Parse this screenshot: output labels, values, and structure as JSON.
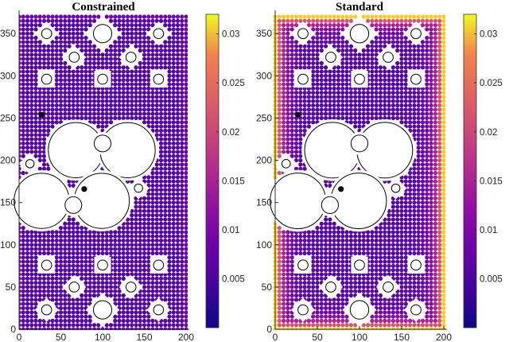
{
  "chart_data": [
    {
      "type": "scatter",
      "title": "Constrained",
      "xlim": [
        0,
        200
      ],
      "ylim": [
        0,
        370
      ],
      "xticks": [
        "0",
        "50",
        "100",
        "150",
        "200"
      ],
      "yticks": [
        "0",
        "50",
        "100",
        "150",
        "200",
        "250",
        "300",
        "350"
      ],
      "colorbar": {
        "min": 0.0,
        "max": 0.032,
        "ticks": [
          "0.005",
          "0.01",
          "0.015",
          "0.02",
          "0.025",
          "0.03"
        ]
      },
      "grid": "off",
      "colormap": "plasma",
      "node_spacing": 5,
      "base_value": 0.0052,
      "boundary_value": 0.0075,
      "boundary_decay": 2.5,
      "black_points": [
        {
          "x": 27,
          "y": 254
        },
        {
          "x": 78,
          "y": 166
        }
      ]
    },
    {
      "type": "scatter",
      "title": "Standard",
      "xlim": [
        0,
        200
      ],
      "ylim": [
        0,
        370
      ],
      "xticks": [
        "0",
        "50",
        "100",
        "150",
        "200"
      ],
      "yticks": [
        "0",
        "50",
        "100",
        "150",
        "200",
        "250",
        "300",
        "350"
      ],
      "colorbar": {
        "min": 0.0,
        "max": 0.032,
        "ticks": [
          "0.005",
          "0.01",
          "0.015",
          "0.02",
          "0.025",
          "0.03"
        ]
      },
      "grid": "off",
      "colormap": "plasma",
      "node_spacing": 5,
      "base_value": 0.0052,
      "boundary_value": 0.03,
      "boundary_decay": 9,
      "black_points": [
        {
          "x": 27,
          "y": 254
        },
        {
          "x": 78,
          "y": 166
        }
      ]
    }
  ],
  "domain_geometry": {
    "holes": [
      {
        "cx": 33,
        "cy": 350,
        "r": 6,
        "cutout": "diamond"
      },
      {
        "cx": 100,
        "cy": 350,
        "r": 11,
        "cutout": "diamond"
      },
      {
        "cx": 167,
        "cy": 350,
        "r": 6,
        "cutout": "diamond"
      },
      {
        "cx": 66,
        "cy": 322,
        "r": 6,
        "cutout": "star"
      },
      {
        "cx": 134,
        "cy": 322,
        "r": 6,
        "cutout": "star"
      },
      {
        "cx": 33,
        "cy": 296,
        "r": 6,
        "cutout": "square"
      },
      {
        "cx": 100,
        "cy": 296,
        "r": 6,
        "cutout": "square"
      },
      {
        "cx": 167,
        "cy": 296,
        "r": 6,
        "cutout": "square"
      },
      {
        "cx": 68,
        "cy": 212,
        "r": 33,
        "cutout": "gear"
      },
      {
        "cx": 130,
        "cy": 212,
        "r": 33,
        "cutout": "gear"
      },
      {
        "cx": 100,
        "cy": 220,
        "r": 10,
        "cutout": "circle"
      },
      {
        "cx": 13,
        "cy": 196,
        "r": 5,
        "cutout": "star"
      },
      {
        "cx": 27,
        "cy": 152,
        "r": 33,
        "cutout": "gear"
      },
      {
        "cx": 99,
        "cy": 152,
        "r": 33,
        "cutout": "gear"
      },
      {
        "cx": 65,
        "cy": 147,
        "r": 10,
        "cutout": "circle"
      },
      {
        "cx": 143,
        "cy": 167,
        "r": 5,
        "cutout": "star"
      },
      {
        "cx": 33,
        "cy": 76,
        "r": 6,
        "cutout": "square"
      },
      {
        "cx": 100,
        "cy": 76,
        "r": 6,
        "cutout": "square"
      },
      {
        "cx": 167,
        "cy": 76,
        "r": 6,
        "cutout": "square"
      },
      {
        "cx": 66,
        "cy": 50,
        "r": 6,
        "cutout": "star"
      },
      {
        "cx": 134,
        "cy": 50,
        "r": 6,
        "cutout": "star"
      },
      {
        "cx": 33,
        "cy": 23,
        "r": 6,
        "cutout": "diamond"
      },
      {
        "cx": 100,
        "cy": 23,
        "r": 11,
        "cutout": "diamond"
      },
      {
        "cx": 167,
        "cy": 23,
        "r": 6,
        "cutout": "diamond"
      }
    ]
  }
}
